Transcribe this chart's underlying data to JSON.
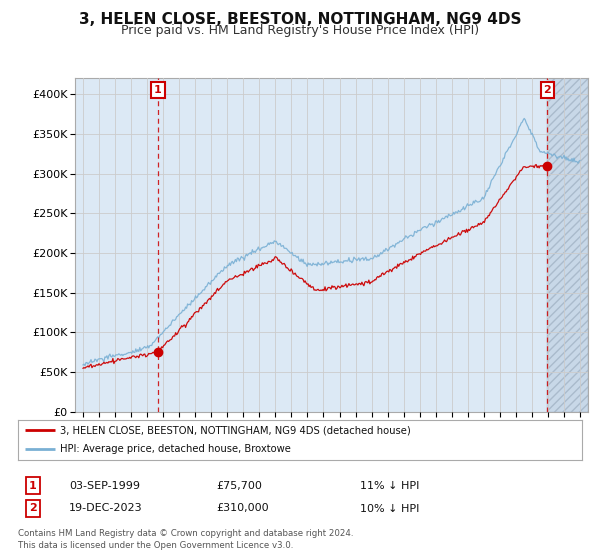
{
  "title": "3, HELEN CLOSE, BEESTON, NOTTINGHAM, NG9 4DS",
  "subtitle": "Price paid vs. HM Land Registry's House Price Index (HPI)",
  "title_fontsize": 11,
  "subtitle_fontsize": 9,
  "ylim": [
    0,
    420000
  ],
  "yticks": [
    0,
    50000,
    100000,
    150000,
    200000,
    250000,
    300000,
    350000,
    400000
  ],
  "ytick_labels": [
    "£0",
    "£50K",
    "£100K",
    "£150K",
    "£200K",
    "£250K",
    "£300K",
    "£350K",
    "£400K"
  ],
  "sale1_year": 1999.67,
  "sale1_price": 75700,
  "sale1_label": "1",
  "sale2_year": 2023.96,
  "sale2_price": 310000,
  "sale2_label": "2",
  "red_line_color": "#cc0000",
  "blue_line_color": "#7ab0d4",
  "sale_marker_color": "#cc0000",
  "annotation_box_color": "#cc0000",
  "grid_color": "#cccccc",
  "bg_color": "#ffffff",
  "plot_bg_color": "#dce9f5",
  "hatch_bg_color": "#c8d8e8",
  "legend_label_red": "3, HELEN CLOSE, BEESTON, NOTTINGHAM, NG9 4DS (detached house)",
  "legend_label_blue": "HPI: Average price, detached house, Broxtowe",
  "table_row1": [
    "1",
    "03-SEP-1999",
    "£75,700",
    "11% ↓ HPI"
  ],
  "table_row2": [
    "2",
    "19-DEC-2023",
    "£310,000",
    "10% ↓ HPI"
  ],
  "footer1": "Contains HM Land Registry data © Crown copyright and database right 2024.",
  "footer2": "This data is licensed under the Open Government Licence v3.0."
}
